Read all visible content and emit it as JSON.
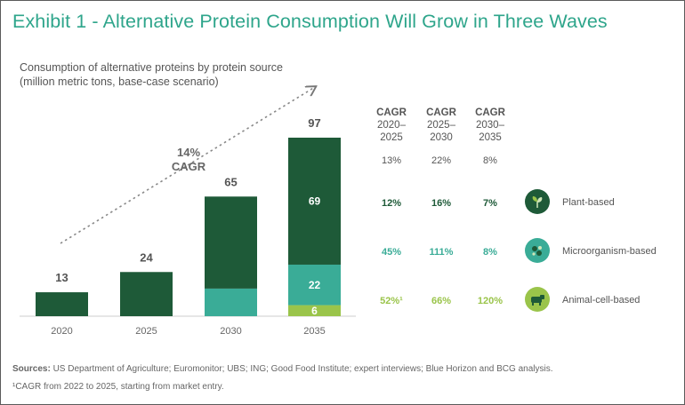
{
  "title": "Exhibit 1 - Alternative Protein Consumption Will Grow in Three Waves",
  "subtitle_line1": "Consumption of alternative proteins by protein source",
  "subtitle_line2": "(million metric tons, base-case scenario)",
  "cagr_overall": {
    "value": "14%",
    "label": "CAGR"
  },
  "colors": {
    "plant": "#1e5a38",
    "micro": "#3aac97",
    "animal": "#9ac44a",
    "title": "#2ea58b"
  },
  "chart_data": {
    "type": "bar",
    "stacked": true,
    "categories": [
      "2020",
      "2025",
      "2030",
      "2035"
    ],
    "totals": [
      13,
      24,
      65,
      97
    ],
    "series": [
      {
        "name": "Plant-based",
        "values": [
          13,
          24,
          50,
          69
        ]
      },
      {
        "name": "Microorganism-based",
        "values": [
          0,
          0,
          15,
          22
        ]
      },
      {
        "name": "Animal-cell-based",
        "values": [
          0,
          0,
          0,
          6
        ]
      }
    ],
    "segment_labels": [
      "69",
      "22",
      "6"
    ],
    "ylim": [
      0,
      100
    ]
  },
  "table": {
    "columns": [
      {
        "label": "CAGR",
        "period": "2020–\n2025"
      },
      {
        "label": "CAGR",
        "period": "2025–\n2030"
      },
      {
        "label": "CAGR",
        "period": "2030–\n2035"
      }
    ],
    "total_row": [
      "13%",
      "22%",
      "8%"
    ],
    "rows": [
      {
        "category": "Plant-based",
        "icon": "plant-icon",
        "values": [
          "12%",
          "16%",
          "7%"
        ]
      },
      {
        "category": "Microorganism-based",
        "icon": "microorganism-icon",
        "values": [
          "45%",
          "111%",
          "8%"
        ]
      },
      {
        "category": "Animal-cell-based",
        "icon": "cow-icon",
        "values": [
          "52%¹",
          "66%",
          "120%"
        ]
      }
    ]
  },
  "sources_label": "Sources:",
  "sources_text": " US Department of Agriculture; Euromonitor; UBS; ING; Good Food Institute; expert interviews; Blue Horizon and BCG analysis.",
  "footnote": "¹CAGR from 2022 to 2025, starting from market entry."
}
